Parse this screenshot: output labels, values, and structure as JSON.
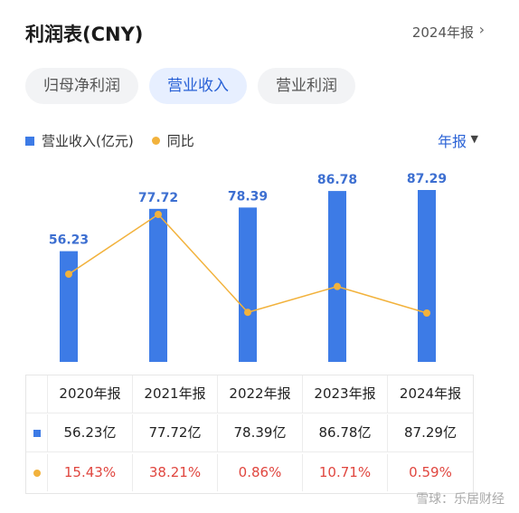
{
  "header": {
    "title": "利润表(CNY)",
    "period_link": "2024年报",
    "chevron": "›"
  },
  "tabs": [
    {
      "label": "归母净利润",
      "active": false
    },
    {
      "label": "营业收入",
      "active": true
    },
    {
      "label": "营业利润",
      "active": false
    }
  ],
  "legend": {
    "series1": "营业收入(亿元)",
    "series2": "同比"
  },
  "period_selector": {
    "label": "年报",
    "caret": "▼"
  },
  "chart_data": {
    "type": "bar",
    "categories": [
      "2020年报",
      "2021年报",
      "2022年报",
      "2023年报",
      "2024年报"
    ],
    "series": [
      {
        "name": "营业收入(亿元)",
        "type": "bar",
        "values": [
          56.23,
          77.72,
          78.39,
          86.78,
          87.29
        ]
      },
      {
        "name": "同比",
        "type": "line",
        "values": [
          15.43,
          38.21,
          0.86,
          10.71,
          0.59
        ]
      }
    ],
    "data_labels": [
      "56.23",
      "77.72",
      "78.39",
      "86.78",
      "87.29"
    ],
    "colors": {
      "bar": "#3d7be6",
      "line": "#f2b23c"
    }
  },
  "table": {
    "headers": [
      "2020年报",
      "2021年报",
      "2022年报",
      "2023年报",
      "2024年报"
    ],
    "revenue": [
      "56.23亿",
      "77.72亿",
      "78.39亿",
      "86.78亿",
      "87.29亿"
    ],
    "growth": [
      "15.43%",
      "38.21%",
      "0.86%",
      "10.71%",
      "0.59%"
    ]
  },
  "watermark": "雪球：乐居财经"
}
